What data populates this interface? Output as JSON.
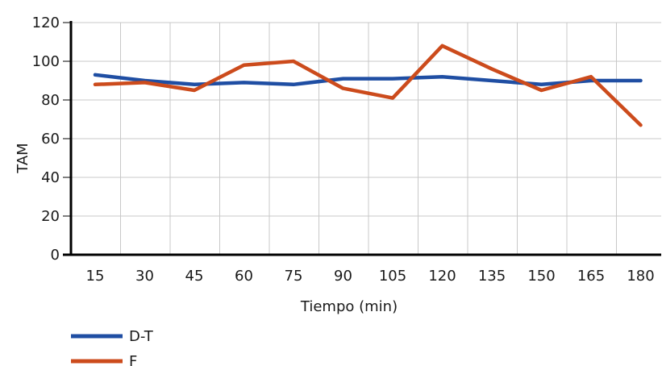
{
  "chart_data": {
    "type": "line",
    "title": "",
    "xlabel": "Tiempo (min)",
    "ylabel": "TAM",
    "x": [
      15,
      30,
      45,
      60,
      75,
      90,
      105,
      120,
      135,
      150,
      165,
      180
    ],
    "ylim": [
      0,
      120
    ],
    "yticks": [
      0,
      20,
      40,
      60,
      80,
      100,
      120
    ],
    "grid": true,
    "legend_position": "bottom-left",
    "series": [
      {
        "name": "D-T",
        "color": "#1f4ea3",
        "values": [
          93,
          90,
          88,
          89,
          88,
          91,
          91,
          92,
          90,
          88,
          90,
          90
        ]
      },
      {
        "name": "F",
        "color": "#cc4b1c",
        "values": [
          88,
          89,
          85,
          98,
          100,
          86,
          81,
          108,
          96,
          85,
          92,
          67
        ]
      }
    ]
  }
}
